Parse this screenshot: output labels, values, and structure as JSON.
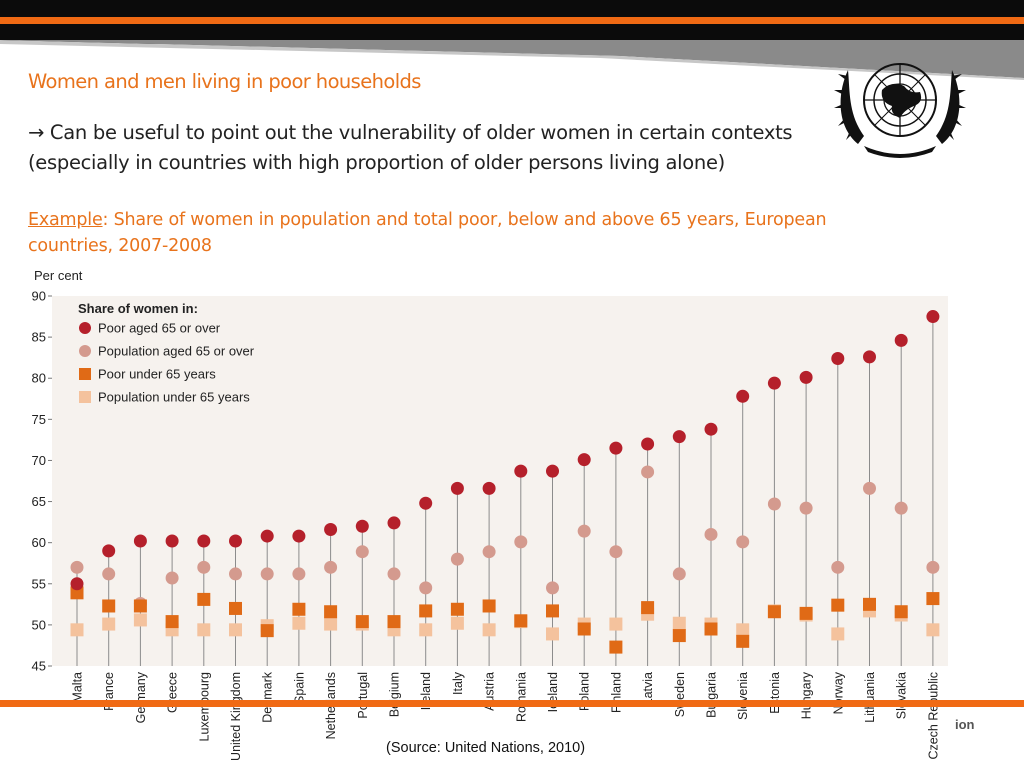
{
  "slide": {
    "title": "Women and men living in poor households",
    "bullet_line1": "→ Can be useful to point out the vulnerability of older women in certain contexts",
    "bullet_line2": "(especially in countries with high proportion of older persons living alone)",
    "example_label": "Example",
    "example_text": ": Share of women in population and total poor, below and above 65 years, European countries, 2007-2008",
    "source": "(Source: United Nations, 2010)",
    "footer_fragment": "ion"
  },
  "colors": {
    "orange_band": "#f06a14",
    "title_orange": "#e8731c",
    "poor65": "#b5202b",
    "pop65": "#d49a8e",
    "poorU65": "#e06a16",
    "popU65": "#f4c29d",
    "chart_bg": "#f6f2ee"
  },
  "chart_data": {
    "type": "scatter",
    "ylabel": "Per cent",
    "ylim": [
      45,
      90
    ],
    "yticks": [
      45,
      50,
      55,
      60,
      65,
      70,
      75,
      80,
      85,
      90
    ],
    "legend_title": "Share of women in:",
    "legend_position": "top-left",
    "categories": [
      "Malta",
      "France",
      "Germany",
      "Greece",
      "Luxembourg",
      "United Kingdom",
      "Denmark",
      "Spain",
      "Netherlands",
      "Portugal",
      "Belgium",
      "Ireland",
      "Italy",
      "Austria",
      "Romania",
      "Iceland",
      "Poland",
      "Finland",
      "Latvia",
      "Sweden",
      "Bulgaria",
      "Slovenia",
      "Estonia",
      "Hungary",
      "Norway",
      "Lithuania",
      "Slovakia",
      "Czech Republic"
    ],
    "series": [
      {
        "name": "Poor aged 65 or over",
        "marker": "circle",
        "color": "#b5202b",
        "values": [
          55.0,
          59.0,
          60.2,
          60.2,
          60.2,
          60.2,
          60.8,
          60.8,
          61.6,
          62.0,
          62.4,
          64.8,
          66.6,
          66.6,
          68.7,
          68.7,
          70.1,
          71.5,
          72.0,
          72.9,
          73.8,
          77.8,
          79.4,
          80.1,
          82.4,
          82.6,
          84.6,
          87.5
        ]
      },
      {
        "name": "Population aged 65 or over",
        "marker": "circle",
        "color": "#d49a8e",
        "values": [
          57.0,
          56.2,
          52.6,
          55.7,
          57.0,
          56.2,
          56.2,
          56.2,
          57.0,
          58.9,
          56.2,
          54.5,
          58.0,
          58.9,
          60.1,
          54.5,
          61.4,
          58.9,
          68.6,
          56.2,
          61.0,
          60.1,
          64.7,
          64.2,
          57.0,
          66.6,
          64.2,
          57.0
        ]
      },
      {
        "name": "Poor under 65 years",
        "marker": "square",
        "color": "#e06a16",
        "values": [
          53.9,
          52.3,
          52.3,
          50.4,
          53.1,
          52.0,
          49.3,
          51.9,
          51.6,
          50.4,
          50.4,
          51.7,
          51.9,
          52.3,
          50.5,
          51.7,
          49.5,
          47.3,
          52.1,
          48.7,
          49.5,
          48.0,
          51.6,
          51.4,
          52.4,
          52.5,
          51.6,
          53.2
        ]
      },
      {
        "name": "Population under 65 years",
        "marker": "square",
        "color": "#f4c29d",
        "values": [
          49.4,
          50.1,
          50.6,
          49.4,
          49.4,
          49.4,
          49.9,
          50.2,
          50.1,
          50.1,
          49.4,
          49.4,
          50.2,
          49.4,
          50.4,
          48.9,
          50.1,
          50.1,
          51.3,
          50.2,
          50.1,
          49.4,
          51.7,
          51.2,
          48.9,
          51.7,
          51.2,
          49.4
        ]
      }
    ]
  }
}
